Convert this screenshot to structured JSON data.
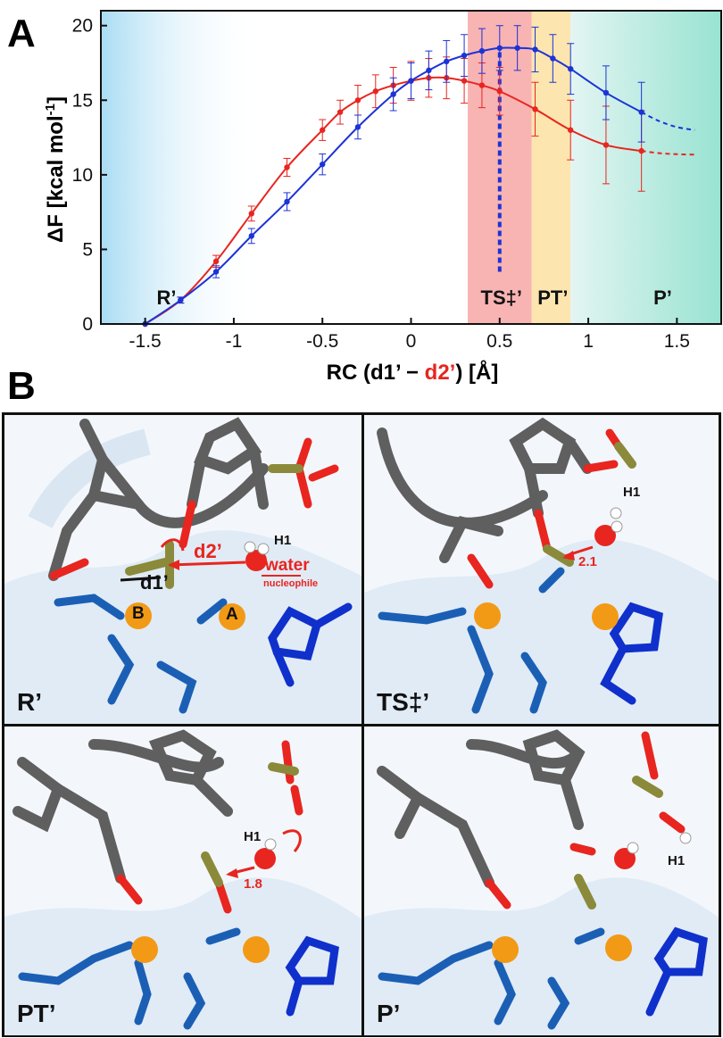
{
  "panel_a": {
    "letter": "A",
    "chart_data": {
      "type": "line",
      "xlabel_parts": [
        "RC (d1’ − ",
        "d2’",
        ") [Å]"
      ],
      "ylabel": "ΔF [kcal mol",
      "ylabel_sup": "-1",
      "ylabel_end": "]",
      "xlim": [
        -1.75,
        1.75
      ],
      "ylim": [
        0,
        21
      ],
      "xticks": [
        "-1.5",
        "-1",
        "-0.5",
        "0",
        "0.5",
        "1",
        "1.5"
      ],
      "xtick_values": [
        -1.5,
        -1,
        -0.5,
        0,
        0.5,
        1,
        1.5
      ],
      "yticks": [
        "0",
        "5",
        "10",
        "15",
        "20"
      ],
      "ytick_values": [
        0,
        5,
        10,
        15,
        20
      ],
      "regions": [
        {
          "label": "R’",
          "x_label": -1.38,
          "color_from": "#a9dcf3",
          "color_to": "#ffffff",
          "x0": -1.75,
          "x1": -0.85
        },
        {
          "label": "TS‡’",
          "x_label": 0.51,
          "color": "#f7a6a6",
          "x0": 0.32,
          "x1": 0.68
        },
        {
          "label": "PT’",
          "x_label": 0.8,
          "color": "#fbe0a0",
          "x0": 0.68,
          "x1": 0.9
        },
        {
          "label": "P’",
          "x_label": 1.42,
          "color_from": "#c9ece9",
          "color_to": "#9fe6d6",
          "x0": 0.9,
          "x1": 1.75
        }
      ],
      "ts_line_x": 0.5,
      "ts_line_y": [
        3.5,
        18.5
      ],
      "series": [
        {
          "color": "#e8251f",
          "x": [
            -1.5,
            -1.3,
            -1.1,
            -0.9,
            -0.7,
            -0.5,
            -0.4,
            -0.3,
            -0.2,
            -0.1,
            0.0,
            0.1,
            0.2,
            0.3,
            0.4,
            0.5,
            0.7,
            0.9,
            1.1,
            1.3
          ],
          "y": [
            0.0,
            1.6,
            4.2,
            7.4,
            10.5,
            13.0,
            14.2,
            15.0,
            15.6,
            16.0,
            16.3,
            16.5,
            16.5,
            16.3,
            16.0,
            15.6,
            14.4,
            13.0,
            12.0,
            11.6
          ],
          "err": [
            0.0,
            0.2,
            0.4,
            0.5,
            0.6,
            0.7,
            0.8,
            1.0,
            1.1,
            1.2,
            1.3,
            1.3,
            1.4,
            1.5,
            1.5,
            1.6,
            1.8,
            2.0,
            2.6,
            2.7
          ],
          "dash_x": [
            1.3,
            1.4,
            1.5,
            1.6
          ],
          "dash_y": [
            11.6,
            11.45,
            11.38,
            11.35
          ]
        },
        {
          "color": "#1c33d6",
          "x": [
            -1.5,
            -1.3,
            -1.1,
            -0.9,
            -0.7,
            -0.5,
            -0.3,
            -0.1,
            0.0,
            0.1,
            0.2,
            0.3,
            0.4,
            0.5,
            0.6,
            0.7,
            0.8,
            0.9,
            1.1,
            1.3
          ],
          "y": [
            0.0,
            1.6,
            3.5,
            5.9,
            8.2,
            10.7,
            13.2,
            15.4,
            16.3,
            17.0,
            17.6,
            18.0,
            18.3,
            18.5,
            18.5,
            18.4,
            17.8,
            17.1,
            15.5,
            14.2
          ],
          "err": [
            0.0,
            0.2,
            0.4,
            0.5,
            0.6,
            0.7,
            0.8,
            1.1,
            1.2,
            1.3,
            1.4,
            1.4,
            1.5,
            1.5,
            1.5,
            1.5,
            1.6,
            1.7,
            1.8,
            2.0
          ],
          "dash_x": [
            1.3,
            1.4,
            1.5,
            1.6
          ],
          "dash_y": [
            14.2,
            13.6,
            13.2,
            13.0
          ]
        }
      ]
    }
  },
  "panel_b": {
    "letter": "B",
    "cells": [
      {
        "label": "R’"
      },
      {
        "label": "TS‡’"
      },
      {
        "label": "PT’"
      },
      {
        "label": "P’"
      }
    ],
    "annotations": {
      "r_d1": "d1’",
      "r_d2": "d2’",
      "r_h1": "H1",
      "r_water": "water",
      "r_nucleophile": "nucleophile",
      "r_site_b": "B",
      "r_site_a": "A",
      "ts_h1": "H1",
      "ts_dist": "2.1",
      "pt_h1": "H1",
      "pt_dist": "1.8",
      "p_h1": "H1"
    }
  }
}
